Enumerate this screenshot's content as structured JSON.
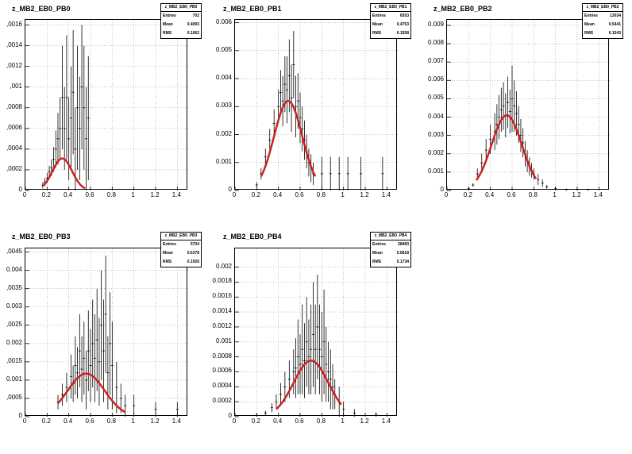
{
  "chart_data": [
    {
      "type": "scatter",
      "title": "z_MB2_EB0_PB0",
      "xlim": [
        0,
        1.5
      ],
      "ylim": [
        0,
        0.00165
      ],
      "xticks": [
        0,
        0.2,
        0.4,
        0.6,
        0.8,
        1,
        1.2,
        1.4
      ],
      "xtick_labels": [
        "0",
        "0.2",
        "0.4",
        "0.6",
        "0.8",
        "1",
        "1.2",
        "1.4"
      ],
      "yticks": [
        0,
        0.0002,
        0.0004,
        0.0006,
        0.0008,
        0.001,
        0.0012,
        0.0014,
        0.0016
      ],
      "ytick_labels": [
        "0",
        ",0002",
        ",0004",
        ",0006",
        ",0008",
        ",001",
        ",0012",
        ",0014",
        ",0016"
      ],
      "grid": true,
      "stats": {
        "name": "z_MB2_EB0_PB0",
        "entries": "702",
        "mean": "0.4093",
        "rms": "0.1062"
      },
      "stat_labels": {
        "entries": "Entries",
        "mean": "Mean",
        "rms": "RMS"
      },
      "fit": {
        "amp": 0.00031,
        "mu": 0.34,
        "sigma": 0.09,
        "range": [
          0.17,
          0.55
        ]
      },
      "points": [
        [
          0.16,
          5e-05,
          3e-05
        ],
        [
          0.18,
          8e-05,
          4e-05
        ],
        [
          0.2,
          0.00012,
          5e-05
        ],
        [
          0.22,
          0.00018,
          6e-05
        ],
        [
          0.24,
          0.00022,
          8e-05
        ],
        [
          0.26,
          0.0003,
          0.00012
        ],
        [
          0.28,
          0.0004,
          0.00018
        ],
        [
          0.3,
          0.0005,
          0.00025
        ],
        [
          0.32,
          0.0006,
          0.0003
        ],
        [
          0.34,
          0.0009,
          0.0005
        ],
        [
          0.36,
          0.0006,
          0.0004
        ],
        [
          0.38,
          0.0009,
          0.0006
        ],
        [
          0.4,
          0.0005,
          0.0004
        ],
        [
          0.42,
          0.0007,
          0.0005
        ],
        [
          0.44,
          0.00095,
          0.0006
        ],
        [
          0.46,
          0.0004,
          0.0004
        ],
        [
          0.48,
          0.0008,
          0.0006
        ],
        [
          0.5,
          0.0006,
          0.0005
        ],
        [
          0.52,
          0.001,
          0.0006
        ],
        [
          0.54,
          0.0008,
          0.0006
        ],
        [
          0.56,
          0.0005,
          0.0005
        ],
        [
          0.58,
          0.0007,
          0.0006
        ]
      ]
    },
    {
      "type": "scatter",
      "title": "z_MB2_EB0_PB1",
      "xlim": [
        0,
        1.5
      ],
      "ylim": [
        0,
        0.0061
      ],
      "xticks": [
        0,
        0.2,
        0.4,
        0.6,
        0.8,
        1,
        1.2,
        1.4
      ],
      "xtick_labels": [
        "0",
        "0.2",
        "0.4",
        "0.6",
        "0.8",
        "1",
        "1.2",
        "1.4"
      ],
      "yticks": [
        0,
        0.001,
        0.002,
        0.003,
        0.004,
        0.005,
        0.006
      ],
      "ytick_labels": [
        "0",
        "0.001",
        "0.002",
        "0.003",
        "0.004",
        "0.005",
        "0.006"
      ],
      "grid": true,
      "stats": {
        "name": "z_MB2_EB0_PB1",
        "entries": "6553",
        "mean": "0.4753",
        "rms": "0.1558"
      },
      "stat_labels": {
        "entries": "Entries",
        "mean": "Mean",
        "rms": "RMS"
      },
      "fit": {
        "amp": 0.0032,
        "mu": 0.49,
        "sigma": 0.13,
        "range": [
          0.24,
          0.74
        ]
      },
      "points": [
        [
          0.2,
          0.0002,
          0.0001
        ],
        [
          0.24,
          0.0006,
          0.0002
        ],
        [
          0.28,
          0.0012,
          0.0003
        ],
        [
          0.32,
          0.0018,
          0.0004
        ],
        [
          0.36,
          0.0024,
          0.0005
        ],
        [
          0.4,
          0.003,
          0.0006
        ],
        [
          0.42,
          0.0035,
          0.0008
        ],
        [
          0.44,
          0.0032,
          0.0009
        ],
        [
          0.46,
          0.0038,
          0.001
        ],
        [
          0.48,
          0.0036,
          0.0012
        ],
        [
          0.5,
          0.0041,
          0.0013
        ],
        [
          0.52,
          0.0033,
          0.0012
        ],
        [
          0.54,
          0.0045,
          0.0012
        ],
        [
          0.56,
          0.003,
          0.0011
        ],
        [
          0.58,
          0.0032,
          0.001
        ],
        [
          0.6,
          0.0026,
          0.0009
        ],
        [
          0.62,
          0.0022,
          0.0008
        ],
        [
          0.64,
          0.0018,
          0.0007
        ],
        [
          0.66,
          0.0014,
          0.0006
        ],
        [
          0.68,
          0.001,
          0.0005
        ],
        [
          0.7,
          0.0008,
          0.0005
        ],
        [
          0.72,
          0.0006,
          0.0004
        ],
        [
          0.8,
          0.0006,
          0.0006
        ],
        [
          0.88,
          0.0006,
          0.0006
        ],
        [
          0.96,
          0.0006,
          0.0006
        ],
        [
          1.04,
          0.0006,
          0.0006
        ],
        [
          1.16,
          0.0006,
          0.0006
        ],
        [
          1.36,
          0.0006,
          0.0006
        ]
      ]
    },
    {
      "type": "scatter",
      "title": "z_MB2_EB0_PB2",
      "xlim": [
        0,
        1.5
      ],
      "ylim": [
        0,
        0.0093
      ],
      "xticks": [
        0,
        0.2,
        0.4,
        0.6,
        0.8,
        1,
        1.2,
        1.4
      ],
      "xtick_labels": [
        "0",
        "0.2",
        "0.4",
        "0.6",
        "0.8",
        "1",
        "1.2",
        "1.4"
      ],
      "yticks": [
        0,
        0.001,
        0.002,
        0.003,
        0.004,
        0.005,
        0.006,
        0.007,
        0.008,
        0.009
      ],
      "ytick_labels": [
        "0",
        "0.001",
        "0.002",
        "0.003",
        "0.004",
        "0.005",
        "0.006",
        "0.007",
        "0.008",
        "0.009"
      ],
      "grid": true,
      "stats": {
        "name": "z_MB2_EB0_PB2",
        "entries": "13034",
        "mean": "0.5441",
        "rms": "0.1543"
      },
      "stat_labels": {
        "entries": "Entries",
        "mean": "Mean",
        "rms": "RMS"
      },
      "fit": {
        "amp": 0.0041,
        "mu": 0.55,
        "sigma": 0.14,
        "range": [
          0.27,
          0.82
        ]
      },
      "points": [
        [
          0.2,
          0.0001,
          5e-05
        ],
        [
          0.24,
          0.0003,
          0.0001
        ],
        [
          0.28,
          0.0009,
          0.0003
        ],
        [
          0.32,
          0.0015,
          0.0005
        ],
        [
          0.36,
          0.0022,
          0.0006
        ],
        [
          0.4,
          0.0028,
          0.0008
        ],
        [
          0.44,
          0.0032,
          0.001
        ],
        [
          0.46,
          0.0036,
          0.0011
        ],
        [
          0.48,
          0.004,
          0.0012
        ],
        [
          0.5,
          0.0044,
          0.0012
        ],
        [
          0.52,
          0.0046,
          0.0013
        ],
        [
          0.54,
          0.0041,
          0.0012
        ],
        [
          0.56,
          0.0048,
          0.0014
        ],
        [
          0.58,
          0.0043,
          0.0012
        ],
        [
          0.6,
          0.005,
          0.0018
        ],
        [
          0.62,
          0.0046,
          0.0014
        ],
        [
          0.64,
          0.0042,
          0.0012
        ],
        [
          0.66,
          0.0036,
          0.001
        ],
        [
          0.68,
          0.003,
          0.0009
        ],
        [
          0.7,
          0.0026,
          0.0008
        ],
        [
          0.72,
          0.002,
          0.0007
        ],
        [
          0.74,
          0.0016,
          0.0006
        ],
        [
          0.76,
          0.0013,
          0.0005
        ],
        [
          0.78,
          0.0011,
          0.0004
        ],
        [
          0.8,
          0.0009,
          0.0003
        ],
        [
          0.84,
          0.0006,
          0.0003
        ],
        [
          0.88,
          0.0004,
          0.0002
        ],
        [
          0.92,
          0.0002,
          0.0001
        ],
        [
          1.0,
          0.0001,
          0.0001
        ],
        [
          1.1,
          5e-05,
          5e-05
        ],
        [
          1.2,
          5e-05,
          5e-05
        ],
        [
          1.3,
          5e-05,
          5e-05
        ]
      ]
    },
    {
      "type": "scatter",
      "title": "z_MB2_EB0_PB3",
      "xlim": [
        0,
        1.5
      ],
      "ylim": [
        0,
        0.0046
      ],
      "xticks": [
        0,
        0.2,
        0.4,
        0.6,
        0.8,
        1,
        1.2,
        1.4
      ],
      "xtick_labels": [
        "0",
        "0.2",
        "0.4",
        "0.6",
        "0.8",
        "1",
        "1.2",
        "1.4"
      ],
      "yticks": [
        0,
        0.0005,
        0.001,
        0.0015,
        0.002,
        0.0025,
        0.003,
        0.0035,
        0.004,
        0.0045
      ],
      "ytick_labels": [
        "0",
        ",0005",
        "0.001",
        ",0015",
        "0.002",
        ",0025",
        "0.003",
        ",0035",
        "0.004",
        ",0045"
      ],
      "grid": true,
      "stats": {
        "name": "z_MB2_EB0_PB3",
        "entries": "5704",
        "mean": "0.6378",
        "rms": "0.1926"
      },
      "stat_labels": {
        "entries": "Entries",
        "mean": "Mean",
        "rms": "RMS"
      },
      "fit": {
        "amp": 0.00118,
        "mu": 0.56,
        "sigma": 0.17,
        "range": [
          0.3,
          0.92
        ]
      },
      "points": [
        [
          0.3,
          0.0004,
          0.0002
        ],
        [
          0.34,
          0.0006,
          0.0003
        ],
        [
          0.38,
          0.0008,
          0.0004
        ],
        [
          0.42,
          0.0011,
          0.0006
        ],
        [
          0.44,
          0.0009,
          0.0005
        ],
        [
          0.46,
          0.0014,
          0.0008
        ],
        [
          0.48,
          0.0012,
          0.0007
        ],
        [
          0.5,
          0.0018,
          0.001
        ],
        [
          0.52,
          0.0013,
          0.0009
        ],
        [
          0.54,
          0.0016,
          0.001
        ],
        [
          0.56,
          0.001,
          0.0008
        ],
        [
          0.58,
          0.0018,
          0.0011
        ],
        [
          0.6,
          0.0014,
          0.001
        ],
        [
          0.62,
          0.002,
          0.0012
        ],
        [
          0.64,
          0.0016,
          0.0012
        ],
        [
          0.66,
          0.0021,
          0.0014
        ],
        [
          0.68,
          0.0015,
          0.0012
        ],
        [
          0.7,
          0.0025,
          0.0015
        ],
        [
          0.72,
          0.0018,
          0.0014
        ],
        [
          0.74,
          0.0028,
          0.0016
        ],
        [
          0.76,
          0.0012,
          0.001
        ],
        [
          0.78,
          0.002,
          0.0014
        ],
        [
          0.8,
          0.0014,
          0.0012
        ],
        [
          0.84,
          0.0008,
          0.0007
        ],
        [
          0.88,
          0.0005,
          0.0004
        ],
        [
          0.92,
          0.0003,
          0.0003
        ],
        [
          1.0,
          0.0003,
          0.0003
        ],
        [
          1.2,
          0.0002,
          0.0002
        ],
        [
          1.4,
          0.0002,
          0.0002
        ]
      ]
    },
    {
      "type": "scatter",
      "title": "z_MB2_EB0_PB4",
      "xlim": [
        0,
        1.5
      ],
      "ylim": [
        0,
        0.00225
      ],
      "xticks": [
        0,
        0.2,
        0.4,
        0.6,
        0.8,
        1,
        1.2,
        1.4
      ],
      "xtick_labels": [
        "0",
        "0.2",
        "0.4",
        "0.6",
        "0.8",
        "1",
        "1.2",
        "1.4"
      ],
      "yticks": [
        0,
        0.0002,
        0.0004,
        0.0006,
        0.0008,
        0.001,
        0.0012,
        0.0014,
        0.0016,
        0.0018,
        0.002
      ],
      "ytick_labels": [
        "0",
        "0.0002",
        "0.0004",
        "0.0006",
        "0.0008",
        "0.001",
        "0.0012",
        "0.0014",
        "0.0016",
        "0.0018",
        "0.002"
      ],
      "grid": true,
      "stats": {
        "name": "z_MB2_EB0_PB4",
        "entries": "28483",
        "mean": "0.6818",
        "rms": "0.1734"
      },
      "stat_labels": {
        "entries": "Entries",
        "mean": "Mean",
        "rms": "RMS"
      },
      "fit": {
        "amp": 0.00075,
        "mu": 0.7,
        "sigma": 0.16,
        "range": [
          0.38,
          0.98
        ]
      },
      "points": [
        [
          0.2,
          2e-05,
          2e-05
        ],
        [
          0.28,
          5e-05,
          3e-05
        ],
        [
          0.34,
          0.00012,
          6e-05
        ],
        [
          0.38,
          0.0002,
          0.0001
        ],
        [
          0.42,
          0.0003,
          0.00015
        ],
        [
          0.46,
          0.0004,
          0.0002
        ],
        [
          0.5,
          0.0005,
          0.00025
        ],
        [
          0.54,
          0.0006,
          0.0003
        ],
        [
          0.56,
          0.00065,
          0.0004
        ],
        [
          0.58,
          0.0008,
          0.0005
        ],
        [
          0.6,
          0.0007,
          0.0004
        ],
        [
          0.62,
          0.0009,
          0.0006
        ],
        [
          0.64,
          0.00075,
          0.0005
        ],
        [
          0.66,
          0.001,
          0.0006
        ],
        [
          0.68,
          0.0008,
          0.0005
        ],
        [
          0.7,
          0.0009,
          0.0006
        ],
        [
          0.72,
          0.0011,
          0.0007
        ],
        [
          0.74,
          0.0009,
          0.0006
        ],
        [
          0.76,
          0.0012,
          0.0007
        ],
        [
          0.78,
          0.0009,
          0.0006
        ],
        [
          0.8,
          0.0008,
          0.0006
        ],
        [
          0.82,
          0.001,
          0.0007
        ],
        [
          0.84,
          0.0007,
          0.0005
        ],
        [
          0.86,
          0.0006,
          0.0004
        ],
        [
          0.88,
          0.0005,
          0.0004
        ],
        [
          0.9,
          0.0004,
          0.0003
        ],
        [
          0.92,
          0.0003,
          0.0002
        ],
        [
          0.96,
          0.0002,
          0.0002
        ],
        [
          1.0,
          0.0001,
          0.0001
        ],
        [
          1.1,
          5e-05,
          5e-05
        ],
        [
          1.3,
          3e-05,
          3e-05
        ]
      ]
    }
  ]
}
